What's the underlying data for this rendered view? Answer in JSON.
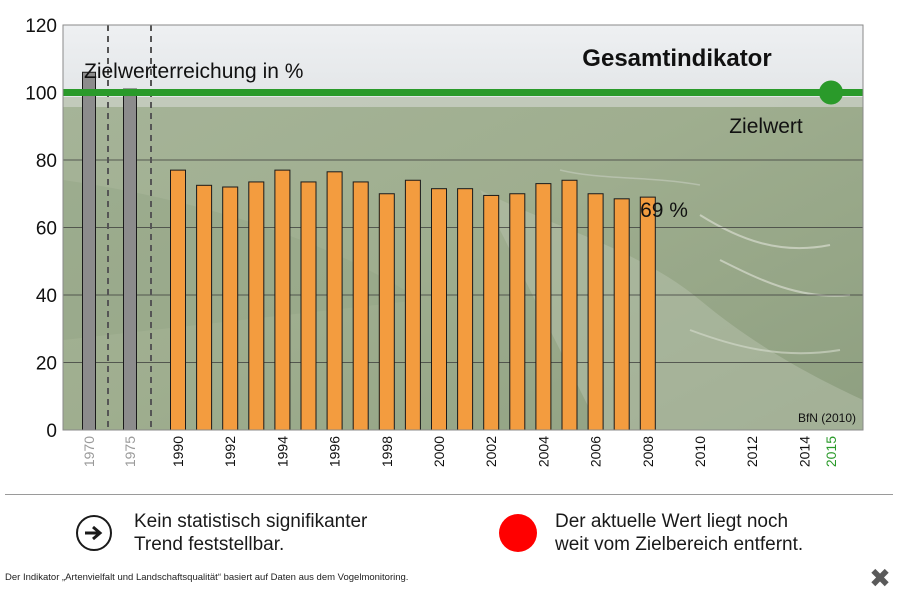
{
  "chart_data": {
    "type": "bar",
    "title": "Gesamtindikator",
    "ylabel": "Zielwerterreichung in %",
    "source": "BfN (2010)",
    "ylim": [
      0,
      120
    ],
    "yticks": [
      0,
      20,
      40,
      60,
      80,
      100,
      120
    ],
    "x_tick_labels": [
      "1970",
      "1975",
      "1990",
      "1992",
      "1994",
      "1996",
      "1998",
      "2000",
      "2002",
      "2004",
      "2006",
      "2008",
      "2010",
      "2012",
      "2014",
      "2015"
    ],
    "series": [
      {
        "group": "historical",
        "color": "#8c8c8c",
        "x": [
          1970,
          1975
        ],
        "values": [
          106,
          101
        ]
      },
      {
        "group": "annual",
        "color": "#f39c3f",
        "x": [
          1990,
          1991,
          1992,
          1993,
          1994,
          1995,
          1996,
          1997,
          1998,
          1999,
          2000,
          2001,
          2002,
          2003,
          2004,
          2005,
          2006,
          2007,
          2008
        ],
        "values": [
          77,
          72.5,
          72,
          73.5,
          77,
          73.5,
          76.5,
          73.5,
          70,
          74,
          71.5,
          71.5,
          69.5,
          70,
          73,
          74,
          70,
          68.5,
          69
        ]
      }
    ],
    "target": {
      "label": "Zielwert",
      "value": 100,
      "year": "2015",
      "color": "#2a9a2a"
    },
    "annotation": "69 %",
    "grid": true
  },
  "legend": {
    "trend_text": "Kein statistisch signifikanter\nTrend feststellbar.",
    "status_text": "Der aktuelle Wert liegt noch\nweit vom Zielbereich entfernt."
  },
  "footnote": "Der Indikator „Artenvielfalt und Landschaftsqualität“ basiert auf Daten aus dem Vogelmonitoring.",
  "close_label": "✖",
  "colors": {
    "target_green": "#2a9a2a",
    "bar_orange": "#f39c3f",
    "bar_gray": "#8c8c8c",
    "status_red": "#ff0000"
  }
}
